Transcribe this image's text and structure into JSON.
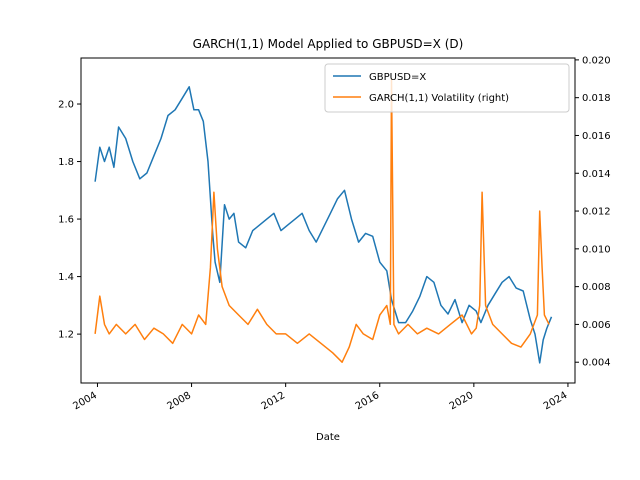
{
  "chart_data": {
    "type": "line",
    "title": "GARCH(1,1) Model Applied to GBPUSD=X (D)",
    "xlabel": "Date",
    "ylabel": "",
    "ylabel_right": "",
    "xlim": [
      2003.3,
      2024.3
    ],
    "ylim": [
      1.03,
      2.16
    ],
    "ylim_right": [
      0.0029,
      0.0201
    ],
    "x_ticks": [
      2004,
      2008,
      2012,
      2016,
      2020,
      2024
    ],
    "x_tick_labels": [
      "2004",
      "2008",
      "2012",
      "2016",
      "2020",
      "2024"
    ],
    "y_ticks": [
      1.2,
      1.4,
      1.6,
      1.8,
      2.0
    ],
    "y_tick_labels": [
      "1.2",
      "1.4",
      "1.6",
      "1.8",
      "2.0"
    ],
    "y_ticks_right": [
      0.004,
      0.006,
      0.008,
      0.01,
      0.012,
      0.014,
      0.016,
      0.018,
      0.02
    ],
    "y_tick_labels_right": [
      "0.004",
      "0.006",
      "0.008",
      "0.010",
      "0.012",
      "0.014",
      "0.016",
      "0.018",
      "0.020"
    ],
    "grid": false,
    "legend_position": "top-right",
    "series": [
      {
        "name": "GBPUSD=X",
        "axis": "left",
        "color": "#1f77b4",
        "x": [
          2003.9,
          2004.1,
          2004.3,
          2004.5,
          2004.7,
          2004.9,
          2005.2,
          2005.5,
          2005.8,
          2006.1,
          2006.4,
          2006.7,
          2007.0,
          2007.3,
          2007.6,
          2007.9,
          2008.1,
          2008.3,
          2008.5,
          2008.7,
          2008.9,
          2009.0,
          2009.2,
          2009.4,
          2009.6,
          2009.8,
          2010.0,
          2010.3,
          2010.6,
          2010.9,
          2011.2,
          2011.5,
          2011.8,
          2012.1,
          2012.4,
          2012.7,
          2013.0,
          2013.3,
          2013.6,
          2013.9,
          2014.2,
          2014.5,
          2014.8,
          2015.1,
          2015.4,
          2015.7,
          2016.0,
          2016.3,
          2016.5,
          2016.8,
          2017.1,
          2017.4,
          2017.7,
          2018.0,
          2018.3,
          2018.6,
          2018.9,
          2019.2,
          2019.5,
          2019.8,
          2020.1,
          2020.3,
          2020.6,
          2020.9,
          2021.2,
          2021.5,
          2021.8,
          2022.1,
          2022.4,
          2022.6,
          2022.8,
          2022.95,
          2023.1,
          2023.3
        ],
        "y": [
          1.73,
          1.85,
          1.8,
          1.85,
          1.78,
          1.92,
          1.88,
          1.8,
          1.74,
          1.76,
          1.82,
          1.88,
          1.96,
          1.98,
          2.02,
          2.06,
          1.98,
          1.98,
          1.94,
          1.8,
          1.55,
          1.45,
          1.38,
          1.65,
          1.6,
          1.62,
          1.52,
          1.5,
          1.56,
          1.58,
          1.6,
          1.62,
          1.56,
          1.58,
          1.6,
          1.62,
          1.56,
          1.52,
          1.57,
          1.62,
          1.67,
          1.7,
          1.6,
          1.52,
          1.55,
          1.54,
          1.45,
          1.42,
          1.32,
          1.24,
          1.24,
          1.28,
          1.33,
          1.4,
          1.38,
          1.3,
          1.27,
          1.32,
          1.24,
          1.3,
          1.28,
          1.24,
          1.3,
          1.34,
          1.38,
          1.4,
          1.36,
          1.35,
          1.25,
          1.2,
          1.1,
          1.18,
          1.22,
          1.26
        ]
      },
      {
        "name": "GARCH(1,1) Volatility (right)",
        "axis": "right",
        "color": "#ff7f0e",
        "x": [
          2003.9,
          2004.1,
          2004.3,
          2004.5,
          2004.8,
          2005.2,
          2005.6,
          2006.0,
          2006.4,
          2006.8,
          2007.2,
          2007.6,
          2008.0,
          2008.3,
          2008.6,
          2008.8,
          2008.95,
          2009.1,
          2009.3,
          2009.6,
          2010.0,
          2010.4,
          2010.8,
          2011.2,
          2011.6,
          2012.0,
          2012.5,
          2013.0,
          2013.5,
          2014.0,
          2014.4,
          2014.7,
          2015.0,
          2015.3,
          2015.7,
          2016.0,
          2016.3,
          2016.45,
          2016.5,
          2016.6,
          2016.8,
          2017.2,
          2017.6,
          2018.0,
          2018.5,
          2019.0,
          2019.5,
          2019.9,
          2020.1,
          2020.25,
          2020.35,
          2020.5,
          2020.8,
          2021.2,
          2021.6,
          2022.0,
          2022.4,
          2022.7,
          2022.8,
          2022.9,
          2023.0,
          2023.2
        ],
        "y": [
          0.0055,
          0.0075,
          0.006,
          0.0055,
          0.006,
          0.0055,
          0.006,
          0.0052,
          0.0058,
          0.0055,
          0.005,
          0.006,
          0.0055,
          0.0065,
          0.006,
          0.009,
          0.013,
          0.01,
          0.008,
          0.007,
          0.0065,
          0.006,
          0.0068,
          0.006,
          0.0055,
          0.0055,
          0.005,
          0.0055,
          0.005,
          0.0045,
          0.004,
          0.0048,
          0.006,
          0.0055,
          0.0052,
          0.0065,
          0.007,
          0.006,
          0.019,
          0.006,
          0.0055,
          0.006,
          0.0055,
          0.0058,
          0.0055,
          0.006,
          0.0065,
          0.0055,
          0.0058,
          0.007,
          0.013,
          0.007,
          0.006,
          0.0055,
          0.005,
          0.0048,
          0.0055,
          0.0065,
          0.012,
          0.009,
          0.0065,
          0.006
        ]
      }
    ]
  }
}
